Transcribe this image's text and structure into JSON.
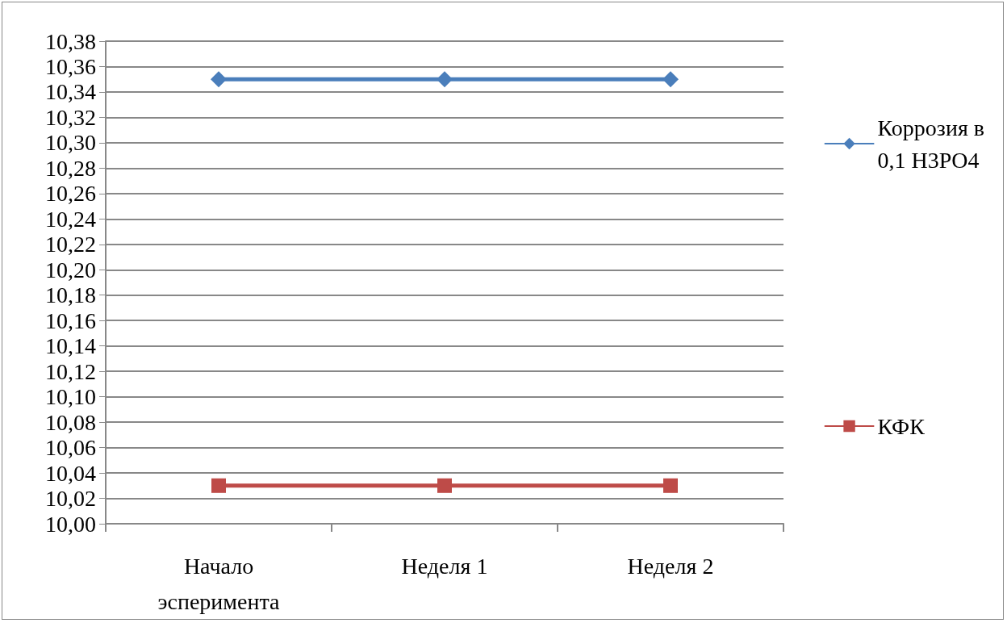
{
  "chart_data": {
    "type": "line",
    "categories": [
      "Начало эсперимента",
      "Неделя 1",
      "Неделя 2"
    ],
    "series": [
      {
        "name": "Коррозия в 0,1 H3PO4",
        "color": "#4a7ebb",
        "marker": "diamond",
        "values": [
          10.35,
          10.35,
          10.35
        ]
      },
      {
        "name": "КФК",
        "color": "#be4b48",
        "marker": "square",
        "values": [
          10.03,
          10.03,
          10.03
        ]
      }
    ],
    "ylim": [
      10.0,
      10.38
    ],
    "yticks": [
      {
        "value": 10.0,
        "label": "10,00"
      },
      {
        "value": 10.02,
        "label": "10,02"
      },
      {
        "value": 10.04,
        "label": "10,04"
      },
      {
        "value": 10.06,
        "label": "10,06"
      },
      {
        "value": 10.08,
        "label": "10,08"
      },
      {
        "value": 10.1,
        "label": "10,10"
      },
      {
        "value": 10.12,
        "label": "10,12"
      },
      {
        "value": 10.14,
        "label": "10,14"
      },
      {
        "value": 10.16,
        "label": "10,16"
      },
      {
        "value": 10.18,
        "label": "10,18"
      },
      {
        "value": 10.2,
        "label": "10,20"
      },
      {
        "value": 10.22,
        "label": "10,22"
      },
      {
        "value": 10.24,
        "label": "10,24"
      },
      {
        "value": 10.26,
        "label": "10,26"
      },
      {
        "value": 10.28,
        "label": "10,28"
      },
      {
        "value": 10.3,
        "label": "10,30"
      },
      {
        "value": 10.32,
        "label": "10,32"
      },
      {
        "value": 10.34,
        "label": "10,34"
      },
      {
        "value": 10.36,
        "label": "10,36"
      },
      {
        "value": 10.38,
        "label": "10,38"
      }
    ],
    "grid": "y",
    "legend": "right"
  }
}
